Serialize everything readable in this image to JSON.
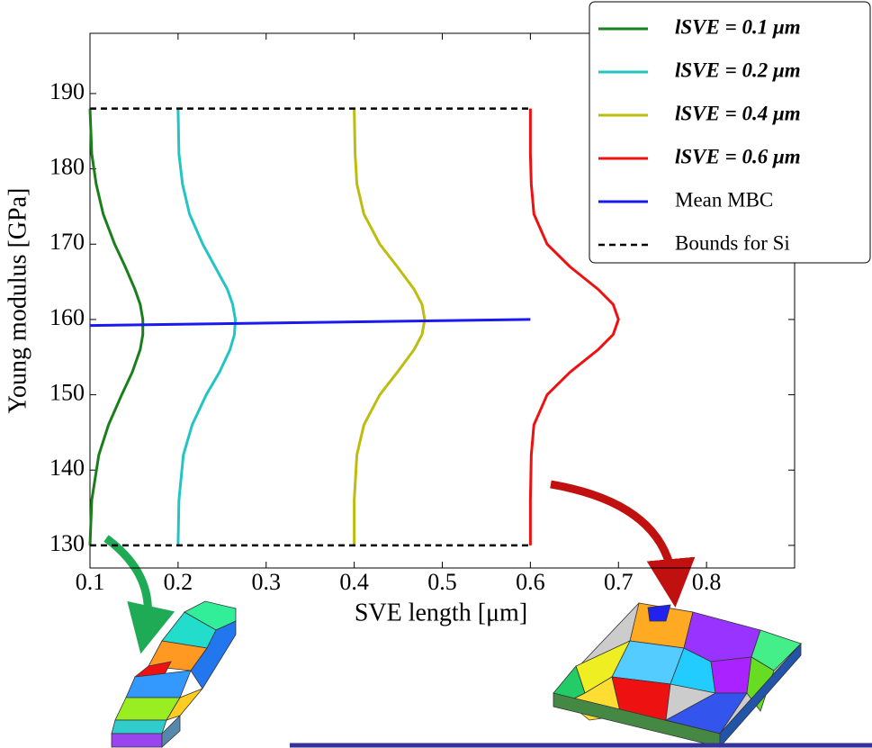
{
  "chart_data": {
    "type": "line",
    "xlabel": "SVE length [μm]",
    "ylabel": "Young modulus [GPa]",
    "xlim": [
      0.1,
      0.9
    ],
    "ylim": [
      127,
      198
    ],
    "xticks": [
      0.1,
      0.2,
      0.3,
      0.4,
      0.5,
      0.6,
      0.7,
      0.8
    ],
    "yticks": [
      130,
      140,
      150,
      160,
      170,
      180,
      190
    ],
    "legend": "upper right",
    "series": [
      {
        "name": "lSVE = 0.1 μm",
        "color": "#1a7f1a",
        "linestyle": "solid",
        "x": [
          0.1,
          0.102,
          0.11,
          0.121,
          0.136,
          0.148,
          0.157,
          0.16,
          0.16,
          0.157,
          0.151,
          0.14,
          0.128,
          0.115,
          0.107,
          0.102,
          0.1
        ],
        "values": [
          130,
          136,
          142,
          146,
          150,
          153,
          156,
          158,
          160,
          162,
          164,
          167,
          170,
          174,
          178,
          182,
          188
        ]
      },
      {
        "name": "lSVE = 0.2 μm",
        "color": "#22c4c4",
        "linestyle": "solid",
        "x": [
          0.2,
          0.201,
          0.206,
          0.216,
          0.232,
          0.247,
          0.259,
          0.264,
          0.265,
          0.262,
          0.256,
          0.242,
          0.228,
          0.213,
          0.205,
          0.201,
          0.2
        ],
        "values": [
          130,
          136,
          142,
          146,
          150,
          153,
          156,
          158,
          160,
          162,
          164,
          167,
          170,
          174,
          178,
          182,
          188
        ]
      },
      {
        "name": "lSVE = 0.4 μm",
        "color": "#bdbd10",
        "linestyle": "solid",
        "x": [
          0.4,
          0.4,
          0.403,
          0.411,
          0.429,
          0.449,
          0.468,
          0.477,
          0.48,
          0.477,
          0.468,
          0.449,
          0.429,
          0.411,
          0.403,
          0.401,
          0.4
        ],
        "values": [
          130,
          136,
          142,
          146,
          150,
          153,
          156,
          158,
          160,
          162,
          164,
          167,
          170,
          174,
          178,
          182,
          188
        ]
      },
      {
        "name": "lSVE = 0.6 μm",
        "color": "#ee1111",
        "linestyle": "solid",
        "x": [
          0.6,
          0.6,
          0.601,
          0.604,
          0.619,
          0.645,
          0.677,
          0.694,
          0.7,
          0.694,
          0.677,
          0.645,
          0.619,
          0.604,
          0.601,
          0.6,
          0.6
        ],
        "values": [
          130,
          136,
          142,
          146,
          150,
          153,
          156,
          158,
          160,
          162,
          164,
          167,
          170,
          174,
          178,
          182,
          188
        ]
      },
      {
        "name": "Mean MBC",
        "color": "#1a1aee",
        "linestyle": "solid",
        "x": [
          0.1,
          0.6
        ],
        "values": [
          159.2,
          160.0
        ]
      },
      {
        "name": "Bounds for Si",
        "color": "#000000",
        "linestyle": "dashed",
        "x": [
          0.1,
          0.6,
          null,
          0.1,
          0.6
        ],
        "values": [
          130,
          130,
          null,
          188,
          188
        ]
      }
    ]
  }
}
